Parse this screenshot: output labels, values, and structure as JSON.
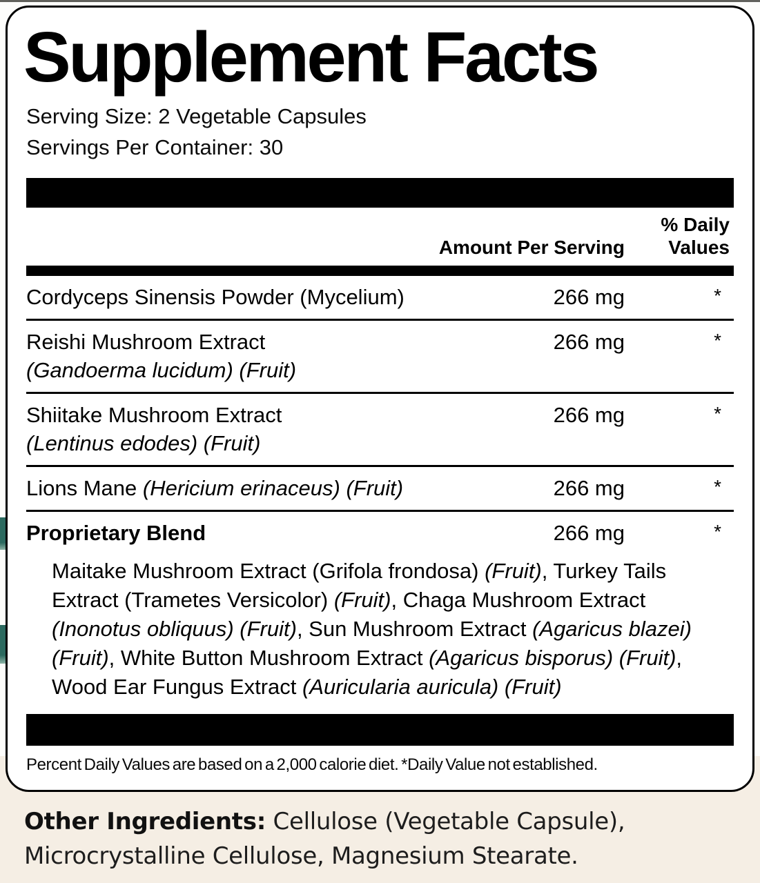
{
  "panel": {
    "title": "Supplement Facts",
    "serving_size": "Serving Size: 2 Vegetable Capsules",
    "servings_per_container": "Servings Per Container: 30",
    "columns": {
      "amount_header": "Amount Per Serving",
      "dv_header_line1": "% Daily",
      "dv_header_line2": "Values"
    },
    "rows": [
      {
        "name": "Cordyceps Sinensis Powder (Mycelium)",
        "amount": "266 mg",
        "dv": "*"
      },
      {
        "name": "Reishi Mushroom Extract",
        "sub": "(Gandoerma lucidum) (Fruit)",
        "amount": "266 mg",
        "dv": "*"
      },
      {
        "name": "Shiitake Mushroom Extract",
        "sub": "(Lentinus edodes) (Fruit)",
        "amount": "266 mg",
        "dv": "*"
      },
      {
        "name_segments": [
          {
            "t": "Lions Mane ",
            "i": false
          },
          {
            "t": "(Hericium erinaceus) (Fruit)",
            "i": true
          }
        ],
        "amount": "266 mg",
        "dv": "*"
      },
      {
        "name": "Proprietary Blend",
        "bold": true,
        "amount": "266 mg",
        "dv": "*"
      }
    ],
    "blend_segments": [
      {
        "t": "Maitake Mushroom Extract (Grifola frondosa) ",
        "i": false
      },
      {
        "t": "(Fruit)",
        "i": true
      },
      {
        "t": ", Turkey Tails Extract (Trametes Versicolor) ",
        "i": false
      },
      {
        "t": "(Fruit)",
        "i": true
      },
      {
        "t": ", Chaga Mushroom Extract ",
        "i": false
      },
      {
        "t": "(Inonotus obliquus) (Fruit)",
        "i": true
      },
      {
        "t": ", Sun Mushroom Extract ",
        "i": false
      },
      {
        "t": "(Agaricus blazei) (Fruit)",
        "i": true
      },
      {
        "t": ", White Button Mushroom Extract ",
        "i": false
      },
      {
        "t": "(Agaricus bisporus) (Fruit)",
        "i": true
      },
      {
        "t": ", Wood Ear Fungus Extract ",
        "i": false
      },
      {
        "t": "(Auricularia auricula) (Fruit)",
        "i": true
      }
    ],
    "footnote": "Percent Daily Values are based on a 2,000 calorie diet. *Daily Value not established."
  },
  "footer": {
    "label": "Other Ingredients:",
    "text": " Cellulose (Vegetable Capsule), Microcrystalline Cellulose, Magnesium Stearate."
  },
  "colors": {
    "teal_accent": "#2c6a5f",
    "beige_background": "#f5eee4",
    "panel_border": "#000000"
  }
}
